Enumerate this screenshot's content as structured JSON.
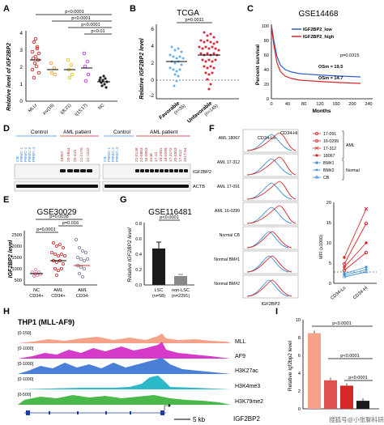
{
  "labels": {
    "A": "A",
    "B": "B",
    "C": "C",
    "D": "D",
    "E": "E",
    "F": "F",
    "G": "G",
    "H": "H",
    "I": "I"
  },
  "colors": {
    "red": "#d62728",
    "blue": "#3b8fd8",
    "pink": "#e87ba0",
    "orange": "#f0a030",
    "yellow": "#e8c21a",
    "purple": "#8a3fb8",
    "black": "#222222"
  },
  "panelA": {
    "ylabel": "Relative level of IGF2BP2",
    "yticks": [
      "0",
      "1",
      "2",
      "3",
      "4"
    ],
    "categories": [
      "MLLr",
      "inv(16)",
      "t(8;21)",
      "t(15;17)",
      "NC"
    ],
    "sig": [
      "p<0.0001",
      "p<0.0001",
      "p<0.0001",
      "p<0.01"
    ]
  },
  "panelB": {
    "title": "TCGA",
    "ylabel": "Relative IGF2BP2 level",
    "yticks": [
      "-2",
      "0",
      "2",
      "4",
      "6"
    ],
    "p": "p=0.0011",
    "groups": [
      {
        "name": "Favorable",
        "n": "(n=35)"
      },
      {
        "name": "Unfavorable",
        "n": "(n=145)"
      }
    ]
  },
  "panelC": {
    "title": "GSE14468",
    "ylabel": "Percent survival",
    "xlabel": "Months",
    "yticks": [
      "0",
      "20",
      "40",
      "60",
      "80",
      "100"
    ],
    "xticks": [
      "0",
      "20",
      "40",
      "60",
      "80",
      "100",
      "120",
      "140",
      "160",
      "180",
      "200",
      "220",
      "240"
    ],
    "legend": [
      "IGF2BP2_low",
      "IGF2BP2_high"
    ],
    "p": "p=0.0315",
    "os_low": "OSm = 19.5",
    "os_high": "OSm = 14.7"
  },
  "panelD": {
    "control1": "Control",
    "aml1": "AML patient",
    "control2": "Control",
    "aml2": "AML patient",
    "lanes1": [
      "CB",
      "PBMC-1",
      "PBMC-2",
      "PBMC-3",
      "PBMC-4",
      "18067",
      "20-2844",
      "20-415",
      "21-2170",
      "21-1222"
    ],
    "lanes2": [
      "CB",
      "PBMC-1",
      "PBMC-2",
      "PBMC-3",
      "22-0148",
      "22-0893",
      "16-0053",
      "3448",
      "17-12",
      "19-2081",
      "18-0299",
      "17-3172",
      "20-0353",
      "17-012",
      "2017-94"
    ],
    "band1": "IGF2BP2",
    "band2": "ACTB"
  },
  "panelE": {
    "title": "GSE30029",
    "ylabel": "IGF2BP2 level",
    "yticks": [
      "500",
      "1000",
      "1500",
      "2000",
      "2500"
    ],
    "p1": "p=0.0038",
    "p2": "p=0.016",
    "p3": "p=0.0001",
    "groups": [
      "NC",
      "AML",
      "AML"
    ],
    "sub": [
      "CD34+",
      "CD34+",
      "CD34-"
    ]
  },
  "panelG": {
    "title": "GSE116481",
    "ylabel": "Relative IGF2BP2 level",
    "yticks": [
      "0.0",
      "0.2",
      "0.4",
      "0.6",
      "0.8"
    ],
    "p": "p<0.0001",
    "groups": [
      "LSC",
      "non-LSC"
    ],
    "n": [
      "(n=58)",
      "(n=2291)"
    ]
  },
  "panelF": {
    "legend": [
      "17-091",
      "16-0299",
      "17-312",
      "18067",
      "BM#1",
      "BM#2",
      "CB"
    ],
    "aml_label": "AML",
    "normal_label": "Normal",
    "cd34lo": "CD34-Lo",
    "cd34hi": "CD34-Hi",
    "rows": [
      "AML 18067",
      "AML 17-312",
      "AML 17-091",
      "AML 16-0299",
      "Normal CB",
      "Normal BM#1",
      "Normal BM#2"
    ],
    "xlabel": "IGF2BP2",
    "mfi_label": "MFI (x1000)",
    "mfi_yticks": [
      "0",
      "5",
      "10",
      "15",
      "20"
    ],
    "mfi_x": [
      "CD34-Lo",
      "CD34-Hi"
    ]
  },
  "panelH": {
    "title": "THP1 (MLL-AF9)",
    "tracks": [
      {
        "range": "[0-150]",
        "name": "MLL"
      },
      {
        "range": "[0-1000]",
        "name": "AF9"
      },
      {
        "range": "[0-1000]",
        "name": "H3K27ac"
      },
      {
        "range": "[0-1000]",
        "name": "H3K4me3"
      },
      {
        "range": "[0-500]",
        "name": "H3K79me2"
      }
    ],
    "scale": "5 kb",
    "gene": "IGF2BP2"
  },
  "panelI": {
    "ylabel": "Relative Igf2bp2 level",
    "yticks": [
      "0",
      "2",
      "4",
      "6",
      "8",
      "10"
    ],
    "values": [
      8.5,
      3.2,
      2.6,
      0.9
    ],
    "p": [
      "p<0.0001",
      "p<0.0001",
      "p<0.0001"
    ],
    "watermark": "搜狐号@小张聊科研"
  },
  "chart_data": [
    {
      "panel": "A",
      "type": "scatter",
      "title": "",
      "ylabel": "Relative level of IGF2BP2",
      "categories": [
        "MLLr",
        "inv(16)",
        "t(8;21)",
        "t(15;17)",
        "NC"
      ],
      "means": [
        2.7,
        2.1,
        2.0,
        2.1,
        1.3
      ],
      "ylim": [
        0,
        4
      ]
    },
    {
      "panel": "B",
      "type": "scatter",
      "title": "TCGA",
      "categories": [
        "Favorable",
        "Unfavorable"
      ],
      "means": [
        0.2,
        0.9
      ],
      "ylim": [
        -2,
        6
      ]
    },
    {
      "panel": "C",
      "type": "line",
      "title": "GSE14468",
      "xlabel": "Months",
      "ylabel": "Percent survival",
      "series": [
        {
          "name": "IGF2BP2_low",
          "x": [
            0,
            20,
            40,
            60,
            80,
            100,
            120,
            140,
            160,
            180,
            200,
            220
          ],
          "values": [
            100,
            45,
            35,
            32,
            30,
            29,
            28,
            28,
            27,
            27,
            27,
            27
          ]
        },
        {
          "name": "IGF2BP2_high",
          "x": [
            0,
            20,
            40,
            60,
            80,
            100,
            120,
            140,
            160,
            180,
            200,
            220
          ],
          "values": [
            100,
            35,
            25,
            22,
            20,
            19,
            18,
            18,
            17,
            17,
            17,
            17
          ]
        }
      ],
      "xlim": [
        0,
        240
      ],
      "ylim": [
        0,
        100
      ]
    },
    {
      "panel": "E",
      "type": "scatter",
      "title": "GSE30029",
      "ylabel": "IGF2BP2 level",
      "categories": [
        "NC CD34+",
        "AML CD34+",
        "AML CD34-"
      ],
      "means": [
        700,
        1200,
        1000
      ],
      "ylim": [
        0,
        2500
      ]
    },
    {
      "panel": "G",
      "type": "bar",
      "title": "GSE116481",
      "ylabel": "Relative IGF2BP2 level",
      "categories": [
        "LSC",
        "non-LSC"
      ],
      "values": [
        0.47,
        0.12
      ],
      "ylim": [
        0,
        0.8
      ]
    },
    {
      "panel": "I",
      "type": "bar",
      "ylabel": "Relative Igf2bp2 level",
      "values": [
        8.5,
        3.2,
        2.6,
        0.9
      ],
      "ylim": [
        0,
        10
      ]
    }
  ]
}
